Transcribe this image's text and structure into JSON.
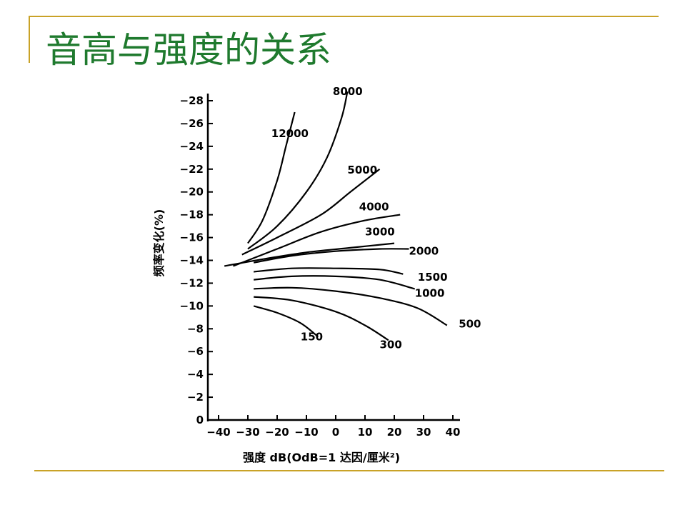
{
  "slide": {
    "title": "音高与强度的关系"
  },
  "chart_data": {
    "type": "line",
    "title": "",
    "xlabel": "强度 dB(OdB=1 达因/厘米²)",
    "ylabel": "频率变化(%)",
    "xlim": [
      -40,
      40
    ],
    "ylim": [
      0,
      28
    ],
    "x_ticks": [
      -40,
      -30,
      -20,
      -10,
      0,
      10,
      20,
      30,
      40
    ],
    "x_tick_labels": [
      "−40",
      "−30",
      "−20",
      "−10",
      "0",
      "10",
      "20",
      "30",
      "40"
    ],
    "y_ticks": [
      0,
      2,
      4,
      6,
      8,
      10,
      12,
      14,
      16,
      18,
      20,
      22,
      24,
      26,
      28
    ],
    "y_tick_labels": [
      "0",
      "−2",
      "−4",
      "−6",
      "−8",
      "−10",
      "−12",
      "−14",
      "−16",
      "−18",
      "−20",
      "−22",
      "−24",
      "−26",
      "−28"
    ],
    "grid": false,
    "series": [
      {
        "name": "12000",
        "x": [
          -30,
          -25,
          -20,
          -17,
          -14
        ],
        "y": [
          15.5,
          17.5,
          21,
          24,
          27
        ]
      },
      {
        "name": "8000",
        "x": [
          -30,
          -20,
          -10,
          -3,
          2,
          4
        ],
        "y": [
          15,
          17,
          20,
          23,
          26.5,
          28.8
        ]
      },
      {
        "name": "5000",
        "x": [
          -32,
          -20,
          -5,
          5,
          15
        ],
        "y": [
          14.5,
          16,
          18,
          20,
          22
        ]
      },
      {
        "name": "4000",
        "x": [
          -35,
          -20,
          -5,
          10,
          22
        ],
        "y": [
          13.5,
          15,
          16.5,
          17.5,
          18
        ]
      },
      {
        "name": "3000",
        "x": [
          -38,
          -25,
          -10,
          5,
          20
        ],
        "y": [
          13.5,
          14.1,
          14.7,
          15.1,
          15.5
        ]
      },
      {
        "name": "2000",
        "x": [
          -28,
          -15,
          0,
          15,
          25
        ],
        "y": [
          13.8,
          14.4,
          14.8,
          15,
          15
        ]
      },
      {
        "name": "1500",
        "x": [
          -28,
          -15,
          0,
          15,
          23
        ],
        "y": [
          13,
          13.3,
          13.3,
          13.2,
          12.8
        ]
      },
      {
        "name": "1000",
        "x": [
          -28,
          -15,
          0,
          15,
          27
        ],
        "y": [
          12.3,
          12.6,
          12.6,
          12.3,
          11.5
        ]
      },
      {
        "name": "500",
        "x": [
          -28,
          -15,
          0,
          15,
          28,
          38
        ],
        "y": [
          11.5,
          11.6,
          11.3,
          10.7,
          9.8,
          8.3
        ]
      },
      {
        "name": "300",
        "x": [
          -28,
          -15,
          0,
          10,
          18
        ],
        "y": [
          10.8,
          10.5,
          9.5,
          8.3,
          7
        ]
      },
      {
        "name": "150",
        "x": [
          -28,
          -20,
          -12,
          -6
        ],
        "y": [
          10,
          9.4,
          8.5,
          7.3
        ]
      }
    ],
    "curve_labels": [
      {
        "text": "8000",
        "x": -1,
        "y": 28.5
      },
      {
        "text": "12000",
        "x": -22,
        "y": 24.8
      },
      {
        "text": "5000",
        "x": 4,
        "y": 21.6
      },
      {
        "text": "4000",
        "x": 8,
        "y": 18.4
      },
      {
        "text": "3000",
        "x": 10,
        "y": 16.2
      },
      {
        "text": "2000",
        "x": 25,
        "y": 14.5
      },
      {
        "text": "1500",
        "x": 28,
        "y": 12.2
      },
      {
        "text": "1000",
        "x": 27,
        "y": 10.8
      },
      {
        "text": "500",
        "x": 42,
        "y": 8.1
      },
      {
        "text": "300",
        "x": 15,
        "y": 6.3
      },
      {
        "text": "150",
        "x": -12,
        "y": 7
      }
    ]
  }
}
